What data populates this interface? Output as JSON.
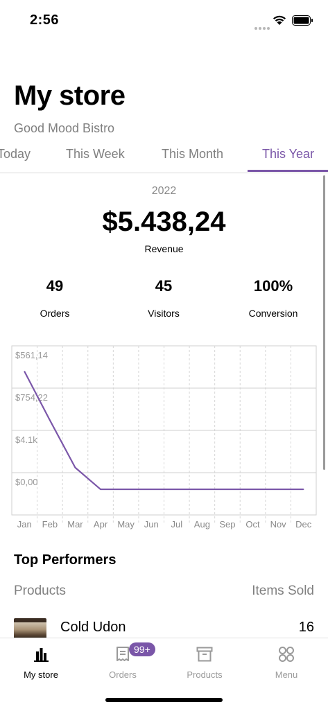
{
  "status_bar": {
    "time": "2:56"
  },
  "header": {
    "title": "My store",
    "store_name": "Good Mood Bistro"
  },
  "tabs": [
    {
      "label": "Today",
      "selected": false
    },
    {
      "label": "This Week",
      "selected": false
    },
    {
      "label": "This Month",
      "selected": false
    },
    {
      "label": "This Year",
      "selected": true
    }
  ],
  "stats": {
    "year": "2022",
    "revenue": "$5.438,24",
    "revenue_label": "Revenue",
    "orders_value": "49",
    "orders_label": "Orders",
    "visitors_value": "45",
    "visitors_label": "Visitors",
    "conversion_value": "100%",
    "conversion_label": "Conversion"
  },
  "chart_data": {
    "type": "line",
    "categories": [
      "Jan",
      "Feb",
      "Mar",
      "Apr",
      "May",
      "Jun",
      "Jul",
      "Aug",
      "Sep",
      "Oct",
      "Nov",
      "Dec"
    ],
    "y_tick_labels": [
      "$561,14",
      "$754,22",
      "$4.1k",
      "$0,00"
    ],
    "series": [
      {
        "values": [
          4600,
          2700,
          850,
          0,
          0,
          0,
          0,
          0,
          0,
          0,
          0,
          0
        ]
      }
    ],
    "ylim": [
      -1000,
      5600
    ],
    "grid": true,
    "color": "#7b57a9"
  },
  "top_performers": {
    "title": "Top Performers",
    "col_products": "Products",
    "col_items_sold": "Items Sold",
    "items": [
      {
        "name": "Cold Udon",
        "sold": "16"
      }
    ]
  },
  "bottom_nav": {
    "items": [
      {
        "label": "My store",
        "icon": "bar-chart-icon",
        "active": true
      },
      {
        "label": "Orders",
        "icon": "orders-icon",
        "badge": "99+"
      },
      {
        "label": "Products",
        "icon": "archive-box-icon"
      },
      {
        "label": "Menu",
        "icon": "grid-icon"
      }
    ]
  },
  "colors": {
    "accent": "#7a56a8",
    "muted": "#808080"
  }
}
